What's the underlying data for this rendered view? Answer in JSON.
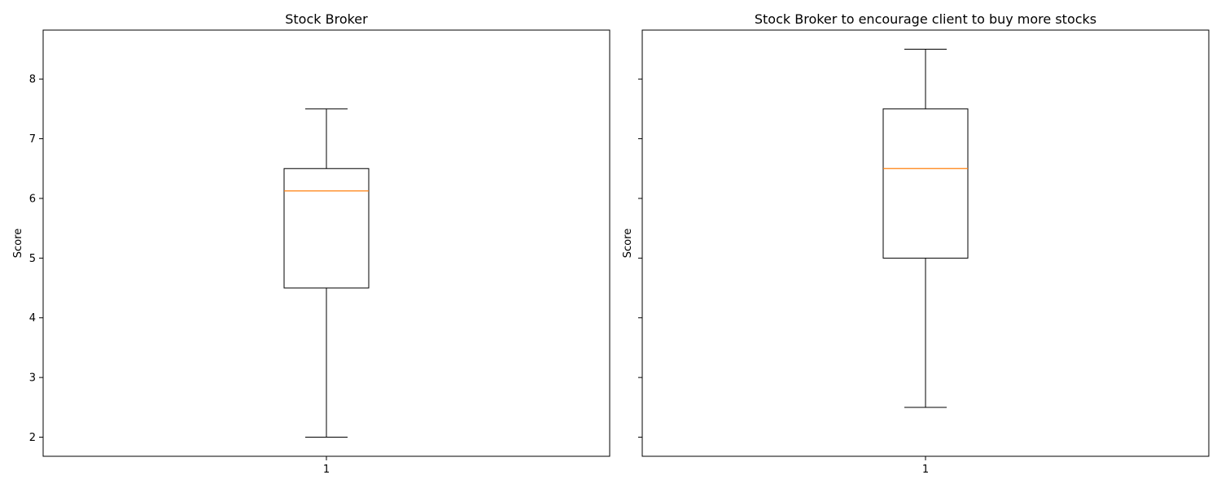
{
  "colors": {
    "box": "#000000",
    "median": "#ff7f0e",
    "axes": "#000000",
    "background": "#ffffff"
  },
  "chart_data": [
    {
      "type": "box",
      "title": "Stock Broker",
      "ylabel": "Score",
      "xlabel": "",
      "categories": [
        "1"
      ],
      "ylim": [
        1.68,
        8.82
      ],
      "yticks": [
        2,
        3,
        4,
        5,
        6,
        7,
        8
      ],
      "show_ytick_labels": true,
      "grid": false,
      "boxes": [
        {
          "whisker_low": 2.0,
          "q1": 4.5,
          "median": 6.125,
          "q3": 6.5,
          "whisker_high": 7.5
        }
      ]
    },
    {
      "type": "box",
      "title": "Stock Broker to encourage client to buy more stocks",
      "ylabel": "Score",
      "xlabel": "",
      "categories": [
        "1"
      ],
      "ylim": [
        1.68,
        8.82
      ],
      "yticks": [
        2,
        3,
        4,
        5,
        6,
        7,
        8
      ],
      "show_ytick_labels": false,
      "grid": false,
      "boxes": [
        {
          "whisker_low": 2.5,
          "q1": 5.0,
          "median": 6.5,
          "q3": 7.5,
          "whisker_high": 8.5
        }
      ]
    }
  ]
}
